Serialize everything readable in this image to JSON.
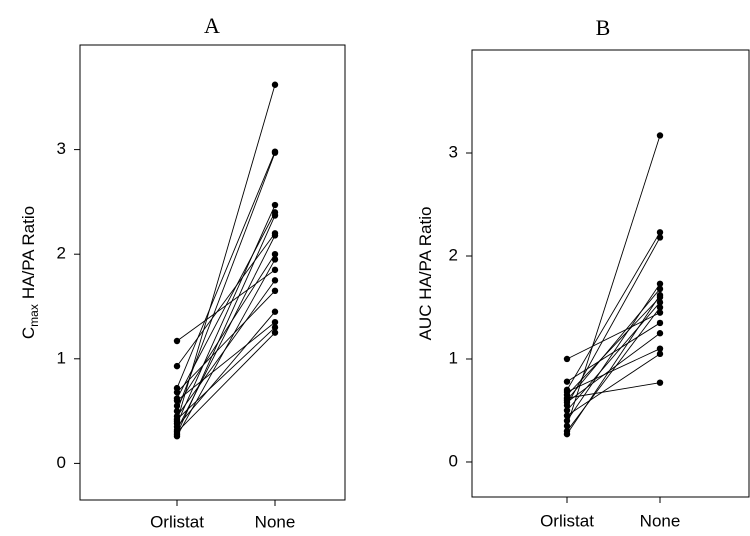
{
  "chart_data": [
    {
      "type": "line",
      "title": "A",
      "ylabel_prefix": "C",
      "ylabel_subscript": "max",
      "ylabel": "HA/PA Ratio",
      "categories": [
        "Orlistat",
        "None"
      ],
      "ylim": [
        -0.35,
        4.0
      ],
      "yticks": [
        0,
        1,
        2,
        3
      ],
      "color": "#000000",
      "series": [
        {
          "values": [
            1.17,
            1.85
          ]
        },
        {
          "values": [
            0.93,
            2.2
          ]
        },
        {
          "values": [
            0.72,
            2.98
          ]
        },
        {
          "values": [
            0.68,
            1.65
          ]
        },
        {
          "values": [
            0.62,
            2.4
          ]
        },
        {
          "values": [
            0.6,
            1.35
          ]
        },
        {
          "values": [
            0.55,
            2.0
          ]
        },
        {
          "values": [
            0.5,
            2.97
          ]
        },
        {
          "values": [
            0.45,
            1.75
          ]
        },
        {
          "values": [
            0.42,
            1.3
          ]
        },
        {
          "values": [
            0.4,
            3.62
          ]
        },
        {
          "values": [
            0.38,
            2.47
          ]
        },
        {
          "values": [
            0.35,
            1.45
          ]
        },
        {
          "values": [
            0.32,
            2.18
          ]
        },
        {
          "values": [
            0.3,
            1.25
          ]
        },
        {
          "values": [
            0.28,
            2.37
          ]
        },
        {
          "values": [
            0.26,
            1.95
          ]
        }
      ]
    },
    {
      "type": "line",
      "title": "B",
      "ylabel": "AUC HA/PA Ratio",
      "categories": [
        "Orlistat",
        "None"
      ],
      "ylim": [
        -0.34,
        4.0
      ],
      "yticks": [
        0,
        1,
        2,
        3
      ],
      "color": "#000000",
      "series": [
        {
          "values": [
            1.0,
            1.45
          ]
        },
        {
          "values": [
            0.78,
            1.35
          ]
        },
        {
          "values": [
            0.7,
            2.23
          ]
        },
        {
          "values": [
            0.68,
            1.1
          ]
        },
        {
          "values": [
            0.65,
            1.6
          ]
        },
        {
          "values": [
            0.62,
            0.77
          ]
        },
        {
          "values": [
            0.6,
            1.68
          ]
        },
        {
          "values": [
            0.58,
            1.25
          ]
        },
        {
          "values": [
            0.55,
            2.18
          ]
        },
        {
          "values": [
            0.5,
            1.55
          ]
        },
        {
          "values": [
            0.45,
            1.05
          ]
        },
        {
          "values": [
            0.4,
            1.73
          ]
        },
        {
          "values": [
            0.35,
            3.17
          ]
        },
        {
          "values": [
            0.3,
            1.5
          ]
        },
        {
          "values": [
            0.27,
            1.62
          ]
        }
      ]
    }
  ]
}
